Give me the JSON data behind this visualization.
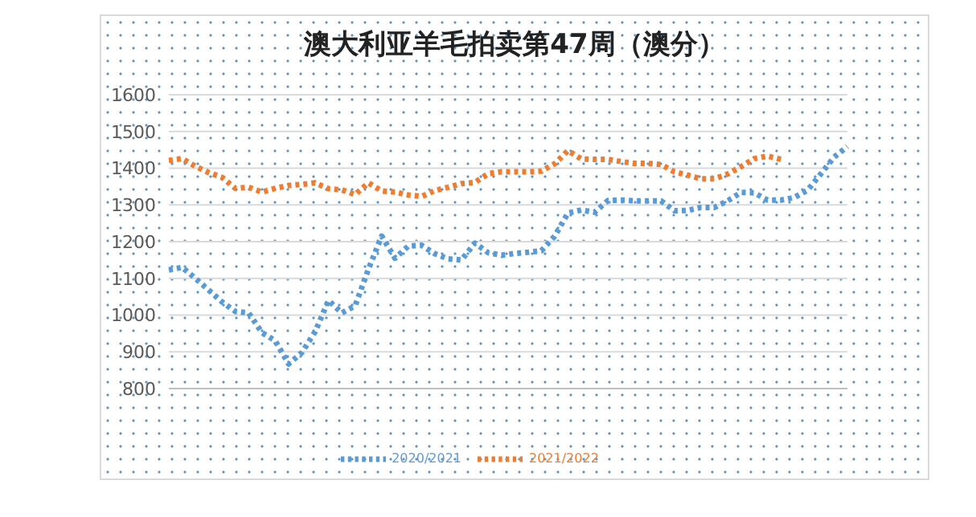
{
  "chart_data": {
    "type": "line",
    "title": "澳大利亚羊毛拍卖第47周（澳分）",
    "categories": [
      null,
      null,
      null,
      null,
      null,
      null,
      null,
      null,
      null,
      null,
      null,
      null,
      null,
      null,
      null,
      null,
      null,
      null,
      null,
      null,
      null,
      null,
      null,
      null,
      null,
      null,
      null,
      null,
      null,
      null,
      null,
      null,
      null,
      null,
      null,
      null,
      null,
      null,
      null,
      null,
      null,
      null,
      null,
      null,
      null,
      null,
      null,
      null,
      null,
      null,
      null,
      null
    ],
    "series": [
      {
        "name": "2020/2021",
        "color": "#5b9bd5",
        "values": [
          1123,
          1130,
          1100,
          1068,
          1036,
          1010,
          1006,
          952,
          930,
          867,
          898,
          955,
          1040,
          1006,
          1025,
          1125,
          1215,
          1155,
          1188,
          1190,
          1167,
          1153,
          1150,
          1196,
          1170,
          1163,
          1168,
          1171,
          1175,
          1215,
          1278,
          1286,
          1280,
          1312,
          1313,
          1311,
          1311,
          1311,
          1284,
          1285,
          1293,
          1293,
          1311,
          1334,
          1333,
          1313,
          1313,
          1320,
          1340,
          1384,
          1430,
          1459
        ]
      },
      {
        "name": "2021/2022",
        "color": "#ed7d31",
        "values": [
          1421,
          1426,
          1405,
          1388,
          1375,
          1345,
          1348,
          1335,
          1345,
          1353,
          1356,
          1360,
          1344,
          1341,
          1328,
          1360,
          1338,
          1335,
          1327,
          1323,
          1339,
          1348,
          1358,
          1361,
          1385,
          1390,
          1390,
          1390,
          1392,
          1412,
          1448,
          1425,
          1424,
          1424,
          1418,
          1413,
          1413,
          1410,
          1390,
          1381,
          1371,
          1371,
          1384,
          1404,
          1426,
          1433,
          1424,
          null,
          null,
          null,
          null,
          null
        ]
      }
    ],
    "ylim": [
      800,
      1600
    ],
    "yticks": [
      800,
      900,
      1000,
      1100,
      1200,
      1300,
      1400,
      1500,
      1600
    ],
    "tick_labels": "y",
    "grid": "y",
    "legend": "bottom",
    "line_style": "dotted",
    "marker": "none"
  }
}
